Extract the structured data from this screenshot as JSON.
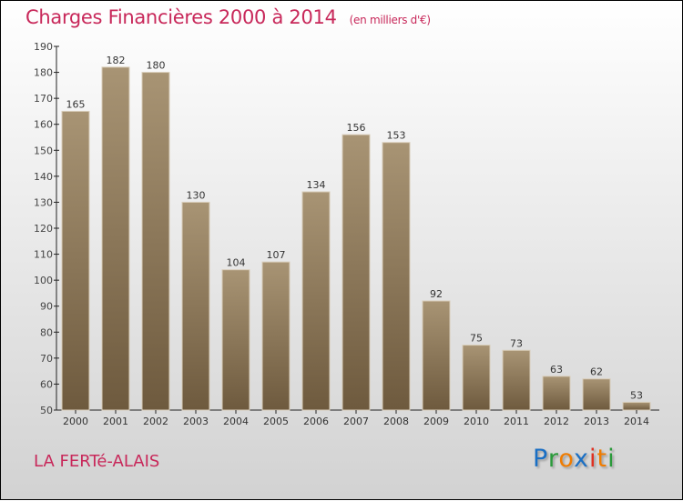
{
  "chart_data": {
    "type": "bar",
    "title": "Charges Financières 2000 à 2014",
    "unit": "(en milliers d'€)",
    "categories": [
      "2000",
      "2001",
      "2002",
      "2003",
      "2004",
      "2005",
      "2006",
      "2007",
      "2008",
      "2009",
      "2010",
      "2011",
      "2012",
      "2013",
      "2014"
    ],
    "values": [
      165,
      182,
      180,
      130,
      104,
      107,
      134,
      156,
      153,
      92,
      75,
      73,
      63,
      62,
      53
    ],
    "ylim": [
      50,
      190
    ],
    "yticks": [
      50,
      60,
      70,
      80,
      90,
      100,
      110,
      120,
      130,
      140,
      150,
      160,
      170,
      180,
      190
    ],
    "xlabel": "",
    "ylabel": "",
    "grid": false
  },
  "place": "LA FERTé-ALAIS",
  "logo": {
    "text": "Proxiti",
    "colors": [
      "#1a6fc4",
      "#1a6fc4",
      "#2a9a3a",
      "#f07c00",
      "#1a6fc4",
      "#e03020",
      "#f07c00",
      "#2a9a3a"
    ]
  },
  "colors": {
    "bar_top": "#a89474",
    "bar_bottom": "#6e5a3e",
    "title": "#c8285a"
  }
}
